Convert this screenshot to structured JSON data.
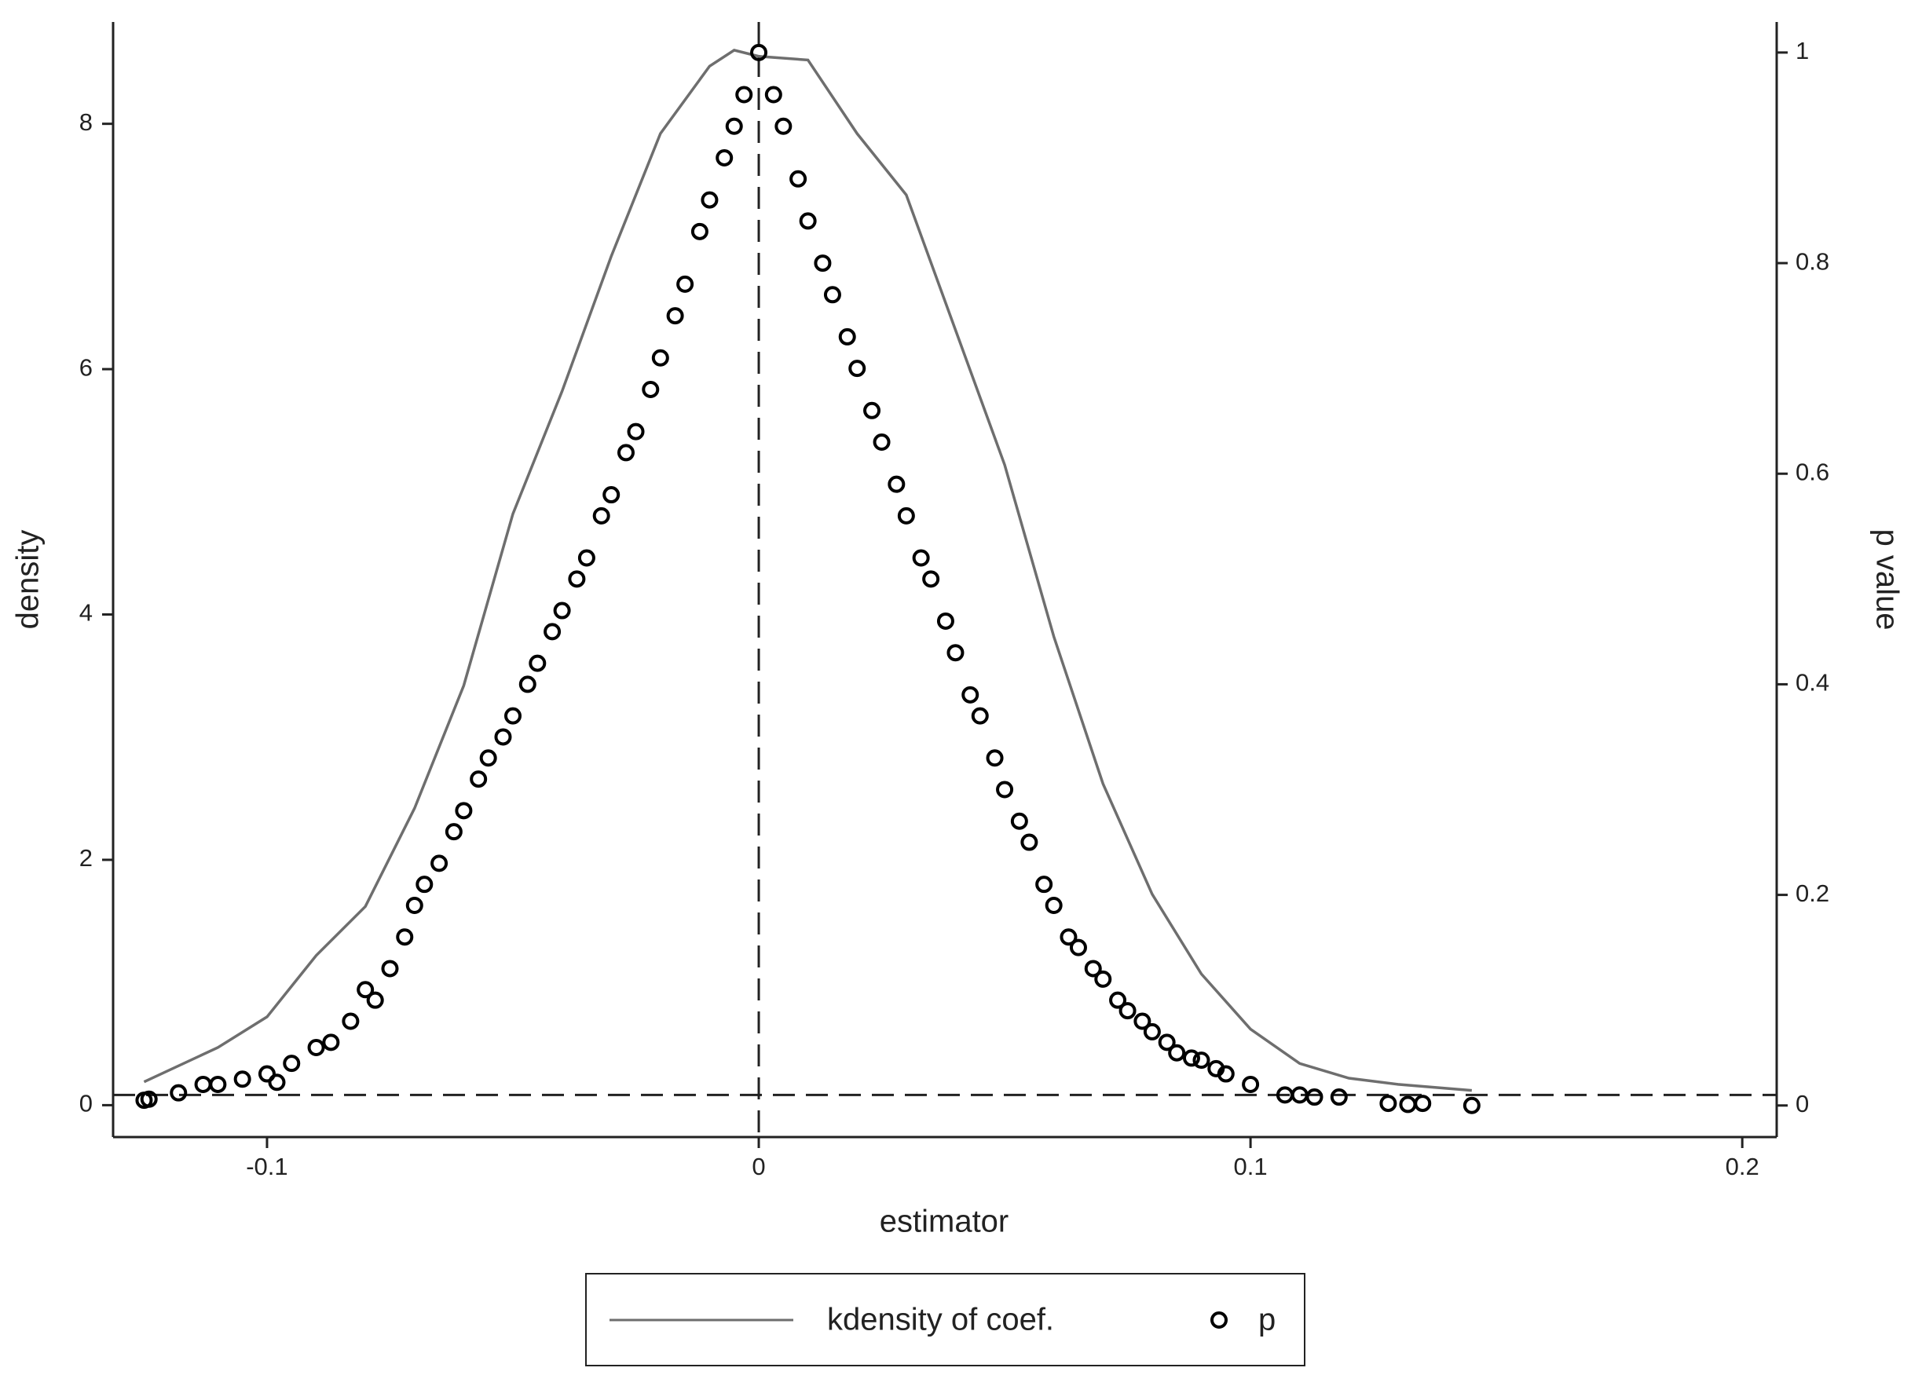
{
  "chart_data": {
    "type": "line",
    "xlabel": "estimator",
    "ylabel": "density",
    "y2label": "p value",
    "xlim": [
      -0.1313,
      0.207
    ],
    "ylim": [
      -0.26,
      8.83
    ],
    "y2lim": [
      -0.03,
      1.029
    ],
    "xticks": [
      -0.1,
      0,
      0.1,
      0.2
    ],
    "yticks": [
      0,
      2,
      4,
      6,
      8
    ],
    "y2ticks": [
      0,
      0.2,
      0.4,
      0.6,
      0.8,
      1
    ],
    "xline": 0,
    "y2line": 0.01,
    "legend": "bottom",
    "series": [
      {
        "name": "kdensity of coef.",
        "type": "line",
        "color": "#6e6e6e",
        "x": [
          -0.125,
          -0.11,
          -0.1,
          -0.09,
          -0.08,
          -0.07,
          -0.06,
          -0.05,
          -0.04,
          -0.03,
          -0.02,
          -0.01,
          -0.005,
          0,
          0.01,
          0.02,
          0.03,
          0.04,
          0.05,
          0.06,
          0.07,
          0.08,
          0.09,
          0.1,
          0.11,
          0.12,
          0.13,
          0.145
        ],
        "values": [
          0.19,
          0.47,
          0.72,
          1.22,
          1.62,
          2.42,
          3.42,
          4.82,
          5.82,
          6.92,
          7.92,
          8.47,
          8.6,
          8.55,
          8.52,
          7.92,
          7.42,
          6.32,
          5.22,
          3.82,
          2.62,
          1.72,
          1.07,
          0.62,
          0.34,
          0.22,
          0.17,
          0.12
        ]
      },
      {
        "name": "p",
        "type": "scatter",
        "axis": "y2",
        "color": "#000000",
        "x": [
          -0.125,
          -0.124,
          -0.118,
          -0.113,
          -0.11,
          -0.105,
          -0.1,
          -0.098,
          -0.095,
          -0.09,
          -0.087,
          -0.083,
          -0.08,
          -0.078,
          -0.075,
          -0.072,
          -0.07,
          -0.068,
          -0.065,
          -0.062,
          -0.06,
          -0.057,
          -0.055,
          -0.052,
          -0.05,
          -0.047,
          -0.045,
          -0.042,
          -0.04,
          -0.037,
          -0.035,
          -0.032,
          -0.03,
          -0.027,
          -0.025,
          -0.022,
          -0.02,
          -0.017,
          -0.015,
          -0.012,
          -0.01,
          -0.007,
          -0.005,
          -0.003,
          0,
          0.003,
          0.005,
          0.008,
          0.01,
          0.013,
          0.015,
          0.018,
          0.02,
          0.023,
          0.025,
          0.028,
          0.03,
          0.033,
          0.035,
          0.038,
          0.04,
          0.043,
          0.045,
          0.048,
          0.05,
          0.053,
          0.055,
          0.058,
          0.06,
          0.063,
          0.065,
          0.068,
          0.07,
          0.073,
          0.075,
          0.078,
          0.08,
          0.083,
          0.085,
          0.088,
          0.09,
          0.093,
          0.095,
          0.1,
          0.107,
          0.11,
          0.113,
          0.118,
          0.128,
          0.132,
          0.135,
          0.145
        ],
        "values": [
          0.005,
          0.006,
          0.012,
          0.02,
          0.02,
          0.025,
          0.03,
          0.022,
          0.04,
          0.055,
          0.06,
          0.08,
          0.11,
          0.1,
          0.13,
          0.16,
          0.19,
          0.21,
          0.23,
          0.26,
          0.28,
          0.31,
          0.33,
          0.35,
          0.37,
          0.4,
          0.42,
          0.45,
          0.47,
          0.5,
          0.52,
          0.56,
          0.58,
          0.62,
          0.64,
          0.68,
          0.71,
          0.75,
          0.78,
          0.83,
          0.86,
          0.9,
          0.93,
          0.96,
          1,
          0.96,
          0.93,
          0.88,
          0.84,
          0.8,
          0.77,
          0.73,
          0.7,
          0.66,
          0.63,
          0.59,
          0.56,
          0.52,
          0.5,
          0.46,
          0.43,
          0.39,
          0.37,
          0.33,
          0.3,
          0.27,
          0.25,
          0.21,
          0.19,
          0.16,
          0.15,
          0.13,
          0.12,
          0.1,
          0.09,
          0.08,
          0.07,
          0.06,
          0.05,
          0.045,
          0.043,
          0.035,
          0.03,
          0.02,
          0.01,
          0.01,
          0.008,
          0.008,
          0.002,
          0.001,
          0.002,
          0
        ]
      }
    ]
  }
}
